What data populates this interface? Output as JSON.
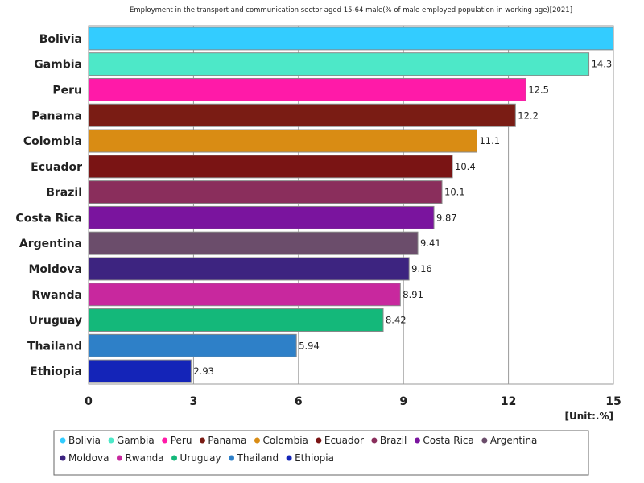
{
  "chart_data": {
    "type": "bar",
    "orientation": "horizontal",
    "title": "Employment in the transport and communication sector aged 15-64 male(% of male employed population in working age)[2021]",
    "unit_label": "[Unit:.%]",
    "xlim": [
      0,
      15
    ],
    "ticks": [
      0,
      3,
      6,
      9,
      12,
      15
    ],
    "grid": true,
    "legend_position": "bottom",
    "categories": [
      "Bolivia",
      "Gambia",
      "Peru",
      "Panama",
      "Colombia",
      "Ecuador",
      "Brazil",
      "Costa Rica",
      "Argentina",
      "Moldova",
      "Rwanda",
      "Uruguay",
      "Thailand",
      "Ethiopia"
    ],
    "values": [
      15,
      14.3,
      12.5,
      12.2,
      11.1,
      10.4,
      10.1,
      9.87,
      9.41,
      9.16,
      8.91,
      8.42,
      5.94,
      2.93
    ],
    "value_labels": [
      "",
      "14.3",
      "12.5",
      "12.2",
      "11.1",
      "10.4",
      "10.1",
      "9.87",
      "9.41",
      "9.16",
      "8.91",
      "8.42",
      "5.94",
      "2.93"
    ],
    "colors": [
      "#33ccff",
      "#4de8c8",
      "#ff1aa8",
      "#7a1c14",
      "#d98c14",
      "#7a1414",
      "#8a2e5c",
      "#7a149e",
      "#6b4d6b",
      "#3d2480",
      "#c8289e",
      "#14b87a",
      "#2e80c8",
      "#1424b8"
    ]
  }
}
